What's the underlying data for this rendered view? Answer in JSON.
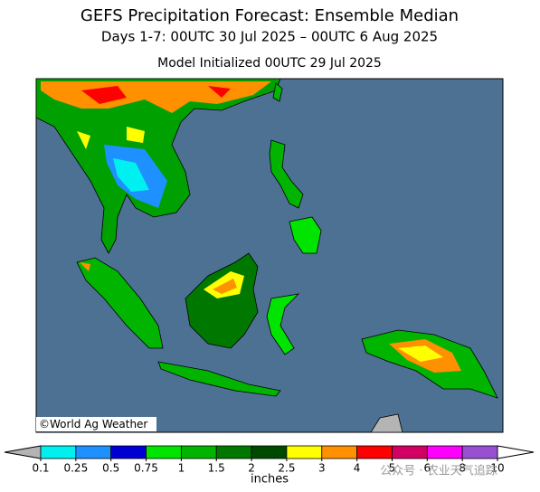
{
  "header": {
    "title": "GEFS Precipitation Forecast: Ensemble Median",
    "subtitle": "Days 1-7: 00UTC 30 Jul 2025 – 00UTC 6 Aug 2025",
    "initialized": "Model Initialized 00UTC 29 Jul 2025"
  },
  "map": {
    "copyright": "©World Ag Weather"
  },
  "legend": {
    "ticks": [
      0.1,
      0.25,
      0.5,
      0.75,
      1,
      1.5,
      2,
      2.5,
      3,
      4,
      5,
      6,
      8,
      10
    ],
    "unit": "inches",
    "under_color": "#b4b4b4",
    "over_color": "#ffffff",
    "colors": [
      "#00f0f0",
      "#1e90ff",
      "#0000d2",
      "#00e400",
      "#00b400",
      "#007800",
      "#004a00",
      "#ffff00",
      "#ff9000",
      "#ff0000",
      "#d20064",
      "#ff00ff",
      "#9850d0"
    ]
  },
  "watermark": "公众号 · 农业天气追踪"
}
